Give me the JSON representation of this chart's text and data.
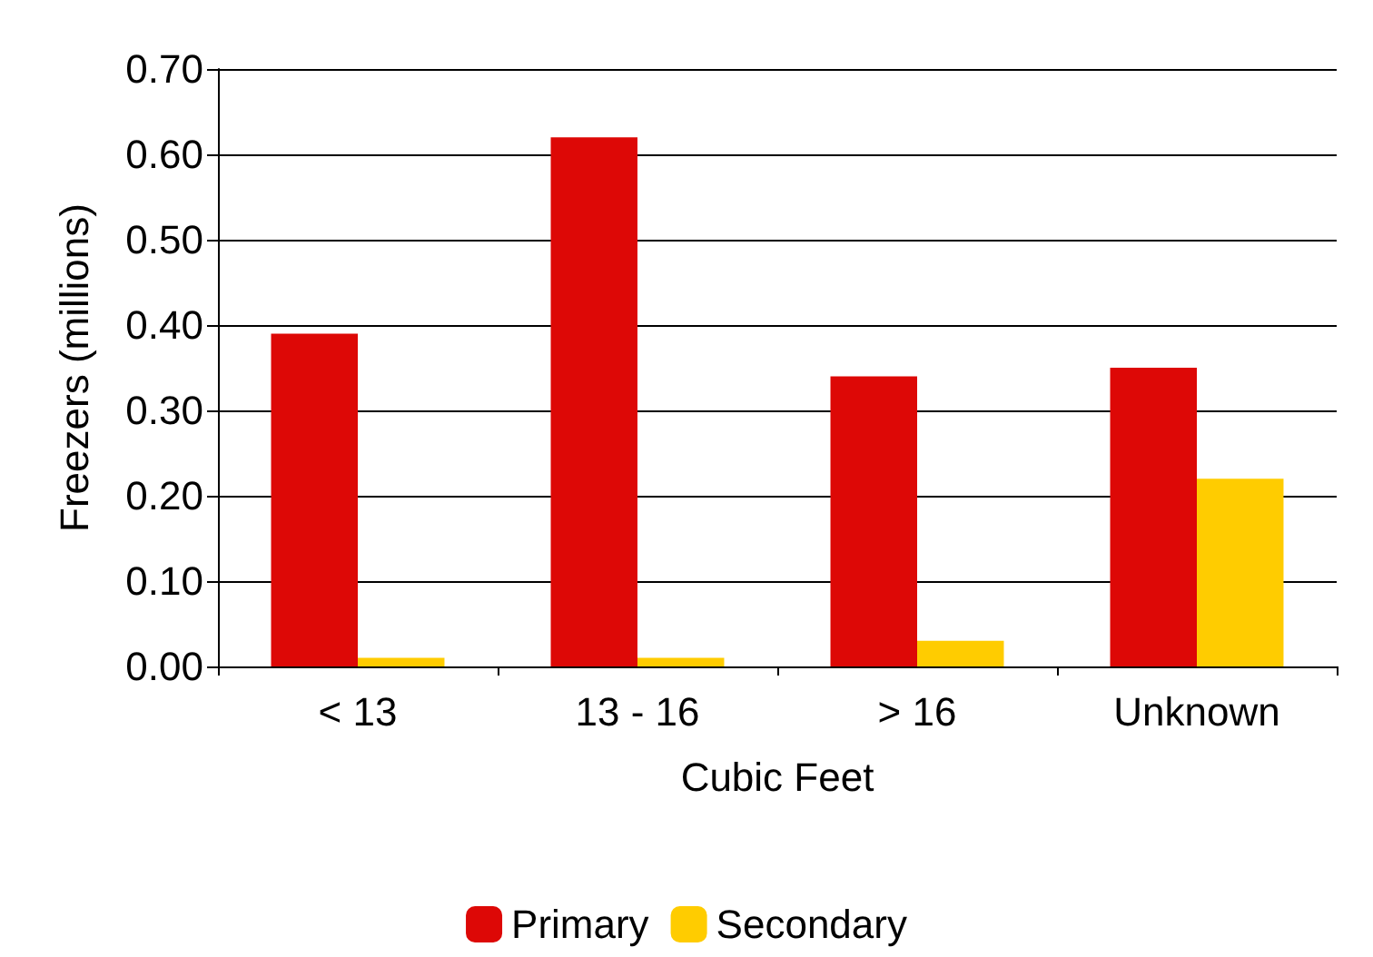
{
  "chart_data": {
    "type": "bar",
    "xlabel": "Cubic Feet",
    "ylabel": "Freezers (millions)",
    "categories": [
      "< 13",
      "13 - 16",
      "> 16",
      "Unknown"
    ],
    "series": [
      {
        "name": "Primary",
        "color": "#dd0806",
        "values": [
          0.39,
          0.62,
          0.34,
          0.35
        ]
      },
      {
        "name": "Secondary",
        "color": "#ffcc00",
        "values": [
          0.01,
          0.01,
          0.03,
          0.22
        ]
      }
    ],
    "ylim": [
      0,
      0.7
    ],
    "yticks": [
      {
        "value": 0,
        "label": "0.00"
      },
      {
        "value": 0.1,
        "label": "0.10"
      },
      {
        "value": 0.2,
        "label": "0.20"
      },
      {
        "value": 0.3,
        "label": "0.30"
      },
      {
        "value": 0.4,
        "label": "0.40"
      },
      {
        "value": 0.5,
        "label": "0.50"
      },
      {
        "value": 0.6,
        "label": "0.60"
      },
      {
        "value": 0.7,
        "label": "0.70"
      }
    ],
    "grid": "y",
    "legend": "bottom"
  }
}
